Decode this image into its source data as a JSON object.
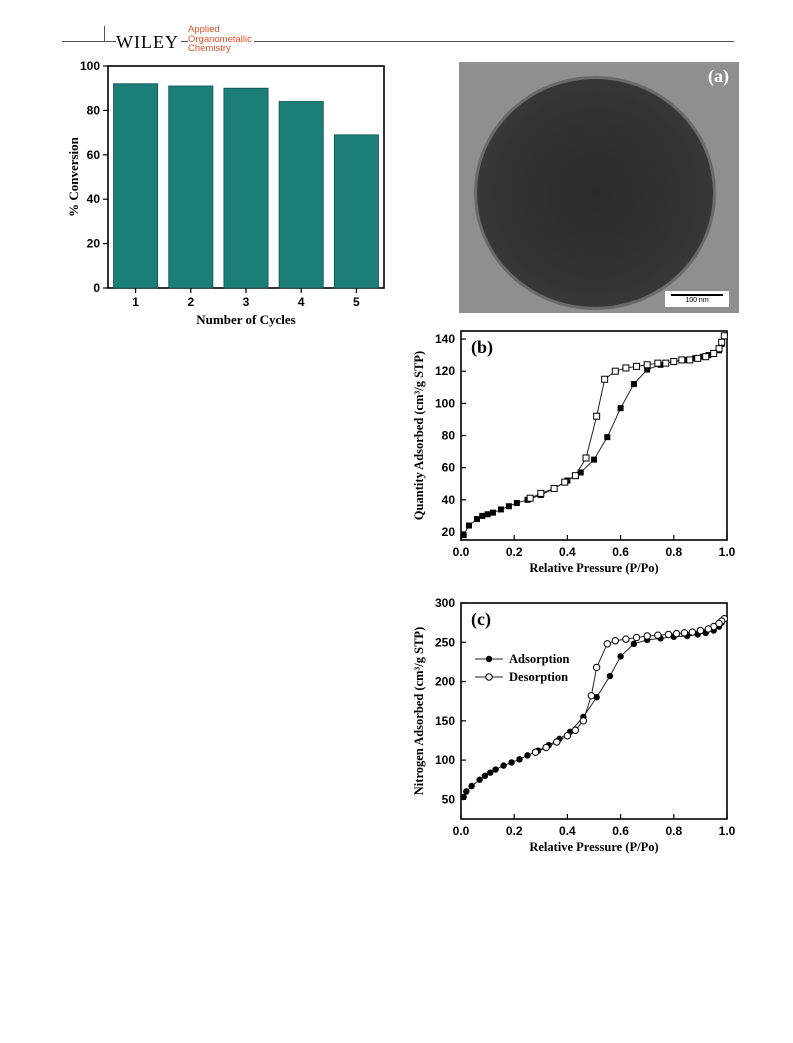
{
  "header": {
    "publisher": "WILEY",
    "journal_line1": "Applied",
    "journal_line2": "Organometallic",
    "journal_line3": "Chemistry"
  },
  "panel_a": {
    "label": "(a)",
    "scale_bar": "100 nm"
  },
  "chart_data": [
    {
      "type": "bar",
      "categories": [
        "1",
        "2",
        "3",
        "4",
        "5"
      ],
      "values": [
        92,
        91,
        90,
        84,
        69
      ],
      "xlabel": "Number of Cycles",
      "ylabel": "% Conversion",
      "ylim": [
        0,
        100
      ],
      "yticks": [
        "0",
        "20",
        "40",
        "60",
        "80",
        "100"
      ],
      "bar_color": "#1b7f78"
    },
    {
      "type": "line",
      "panel_label": "(b)",
      "xlabel": "Relative Pressure (P/Po)",
      "ylabel": "Quantity Adsorbed (cm³/g STP)",
      "xlim": [
        0,
        1.0
      ],
      "ylim": [
        15,
        145
      ],
      "xticks": [
        "0.0",
        "0.2",
        "0.4",
        "0.6",
        "0.8",
        "1.0"
      ],
      "yticks": [
        "20",
        "40",
        "60",
        "80",
        "100",
        "120",
        "140"
      ],
      "series": [
        {
          "marker": "filled-square",
          "x": [
            0.01,
            0.03,
            0.06,
            0.08,
            0.1,
            0.12,
            0.15,
            0.18,
            0.21,
            0.25,
            0.3,
            0.35,
            0.4,
            0.45,
            0.5,
            0.55,
            0.6,
            0.65,
            0.7,
            0.75,
            0.8,
            0.85,
            0.88,
            0.91,
            0.93,
            0.95,
            0.97,
            0.98,
            0.99
          ],
          "y": [
            18,
            24,
            28,
            30,
            31,
            32,
            34,
            36,
            38,
            40,
            43,
            47,
            52,
            57,
            65,
            79,
            97,
            112,
            121,
            124,
            126,
            127,
            128,
            129,
            130,
            131,
            133,
            137,
            142
          ]
        },
        {
          "marker": "open-square",
          "x": [
            0.99,
            0.98,
            0.97,
            0.95,
            0.92,
            0.89,
            0.86,
            0.83,
            0.8,
            0.77,
            0.74,
            0.7,
            0.66,
            0.62,
            0.58,
            0.54,
            0.51,
            0.47,
            0.43,
            0.39,
            0.35,
            0.3,
            0.26
          ],
          "y": [
            142,
            138,
            134,
            131,
            129,
            128,
            127,
            127,
            126,
            125,
            125,
            124,
            123,
            122,
            120,
            115,
            92,
            66,
            55,
            51,
            47,
            44,
            41
          ]
        }
      ]
    },
    {
      "type": "line",
      "panel_label": "(c)",
      "xlabel": "Relative Pressure (P/Po)",
      "ylabel": "Nitrogen Adsorbed (cm³/g STP)",
      "xlim": [
        0,
        1.0
      ],
      "ylim": [
        25,
        300
      ],
      "xticks": [
        "0.0",
        "0.2",
        "0.4",
        "0.6",
        "0.8",
        "1.0"
      ],
      "yticks": [
        "50",
        "100",
        "150",
        "200",
        "250",
        "300"
      ],
      "legend": [
        "Adsorption",
        "Desorption"
      ],
      "series": [
        {
          "name": "Adsorption",
          "marker": "filled-circle",
          "x": [
            0.01,
            0.02,
            0.04,
            0.07,
            0.09,
            0.11,
            0.13,
            0.16,
            0.19,
            0.22,
            0.25,
            0.29,
            0.33,
            0.37,
            0.41,
            0.46,
            0.51,
            0.56,
            0.6,
            0.65,
            0.7,
            0.75,
            0.8,
            0.85,
            0.89,
            0.92,
            0.95,
            0.97,
            0.98,
            0.99
          ],
          "y": [
            53,
            60,
            67,
            75,
            80,
            84,
            88,
            93,
            97,
            101,
            106,
            112,
            119,
            127,
            136,
            155,
            180,
            207,
            232,
            248,
            253,
            255,
            257,
            258,
            260,
            262,
            265,
            270,
            275,
            280
          ]
        },
        {
          "name": "Desorption",
          "marker": "open-circle",
          "x": [
            0.99,
            0.98,
            0.97,
            0.95,
            0.93,
            0.9,
            0.87,
            0.84,
            0.81,
            0.78,
            0.74,
            0.7,
            0.66,
            0.62,
            0.58,
            0.55,
            0.51,
            0.49,
            0.46,
            0.43,
            0.4,
            0.36,
            0.32,
            0.28
          ],
          "y": [
            280,
            277,
            274,
            270,
            267,
            265,
            263,
            262,
            261,
            260,
            259,
            258,
            256,
            254,
            252,
            248,
            218,
            182,
            150,
            138,
            131,
            123,
            116,
            110
          ]
        }
      ]
    }
  ]
}
